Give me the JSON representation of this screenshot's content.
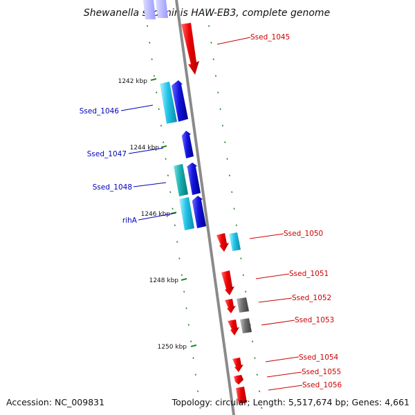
{
  "title": "Shewanella sediminis HAW-EB3, complete genome",
  "footer": {
    "accession": "Accession: NC_009831",
    "summary": "Topology: circular; Length: 5,517,674 bp; Genes: 4,661"
  },
  "colors": {
    "backbone": "#8a8a8a",
    "tick": "#1f8a1f",
    "forward_label": "#cc0000",
    "reverse_label": "#0000bb",
    "forward_gene": "#ee0000",
    "reverse_gene": "#1010dd",
    "rna_cyan": "#22c4e8",
    "rna_teal": "#18b0b0",
    "pseudo_gray": "#707070"
  },
  "kbp_markers": [
    {
      "label": "1242 kbp",
      "kbp": 1242
    },
    {
      "label": "1244 kbp",
      "kbp": 1244
    },
    {
      "label": "1246 kbp",
      "kbp": 1246
    },
    {
      "label": "1248 kbp",
      "kbp": 1248
    },
    {
      "label": "1250 kbp",
      "kbp": 1250
    }
  ],
  "gene_labels": [
    {
      "text": "Ssed_1045",
      "strand": "forward"
    },
    {
      "text": "Ssed_1046",
      "strand": "reverse"
    },
    {
      "text": "Ssed_1047",
      "strand": "reverse"
    },
    {
      "text": "Ssed_1048",
      "strand": "reverse"
    },
    {
      "text": "rihA",
      "strand": "reverse"
    },
    {
      "text": "Ssed_1050",
      "strand": "forward"
    },
    {
      "text": "Ssed_1051",
      "strand": "forward"
    },
    {
      "text": "Ssed_1052",
      "strand": "forward"
    },
    {
      "text": "Ssed_1053",
      "strand": "forward"
    },
    {
      "text": "Ssed_1054",
      "strand": "forward"
    },
    {
      "text": "Ssed_1055",
      "strand": "forward"
    },
    {
      "text": "Ssed_1056",
      "strand": "forward"
    }
  ]
}
